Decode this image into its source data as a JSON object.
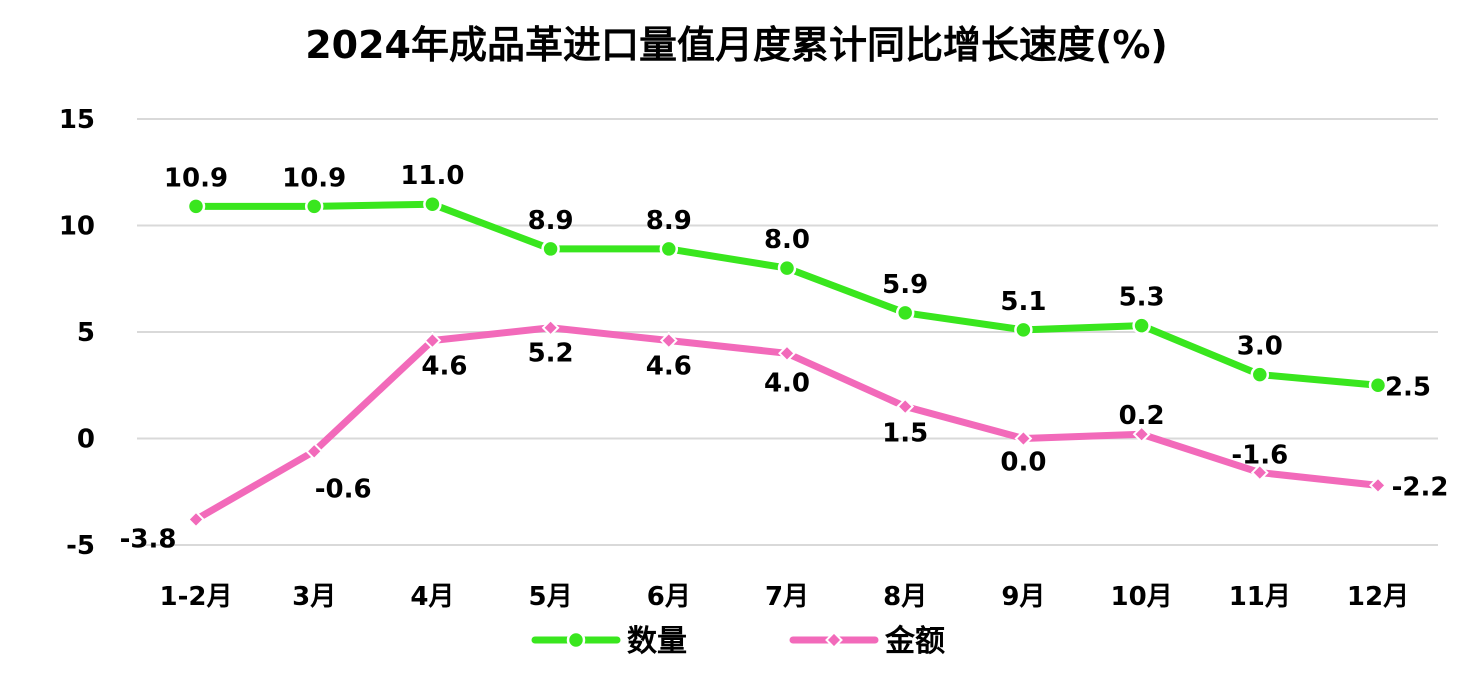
{
  "chart_data": {
    "type": "line",
    "title": "2024年成品革进口量值月度累计同比增长速度(%)",
    "categories": [
      "1-2月",
      "3月",
      "4月",
      "5月",
      "6月",
      "7月",
      "8月",
      "9月",
      "10月",
      "11月",
      "12月"
    ],
    "series": [
      {
        "name": "数量",
        "color": "#39e61e",
        "marker": "circle",
        "values": [
          10.9,
          10.9,
          11.0,
          8.9,
          8.9,
          8.0,
          5.9,
          5.1,
          5.3,
          3.0,
          2.5
        ],
        "labels": [
          "10.9",
          "10.9",
          "11.0",
          "8.9",
          "8.9",
          "8.0",
          "5.9",
          "5.1",
          "5.3",
          "3.0",
          "2.5"
        ]
      },
      {
        "name": "金额",
        "color": "#f26aba",
        "marker": "diamond",
        "values": [
          -3.8,
          -0.6,
          4.6,
          5.2,
          4.6,
          4.0,
          1.5,
          0.0,
          0.2,
          -1.6,
          -2.2
        ],
        "labels": [
          "-3.8",
          "-0.6",
          "4.6",
          "5.2",
          "4.6",
          "4.0",
          "1.5",
          "0.0",
          "0.2",
          "-1.6",
          "-2.2"
        ]
      }
    ],
    "ylim": [
      -5,
      15
    ],
    "yticks": [
      "15",
      "10",
      "5",
      "0",
      "-5"
    ],
    "ytick_values": [
      15,
      10,
      5,
      0,
      -5
    ],
    "grid": true,
    "legend_position": "bottom"
  }
}
